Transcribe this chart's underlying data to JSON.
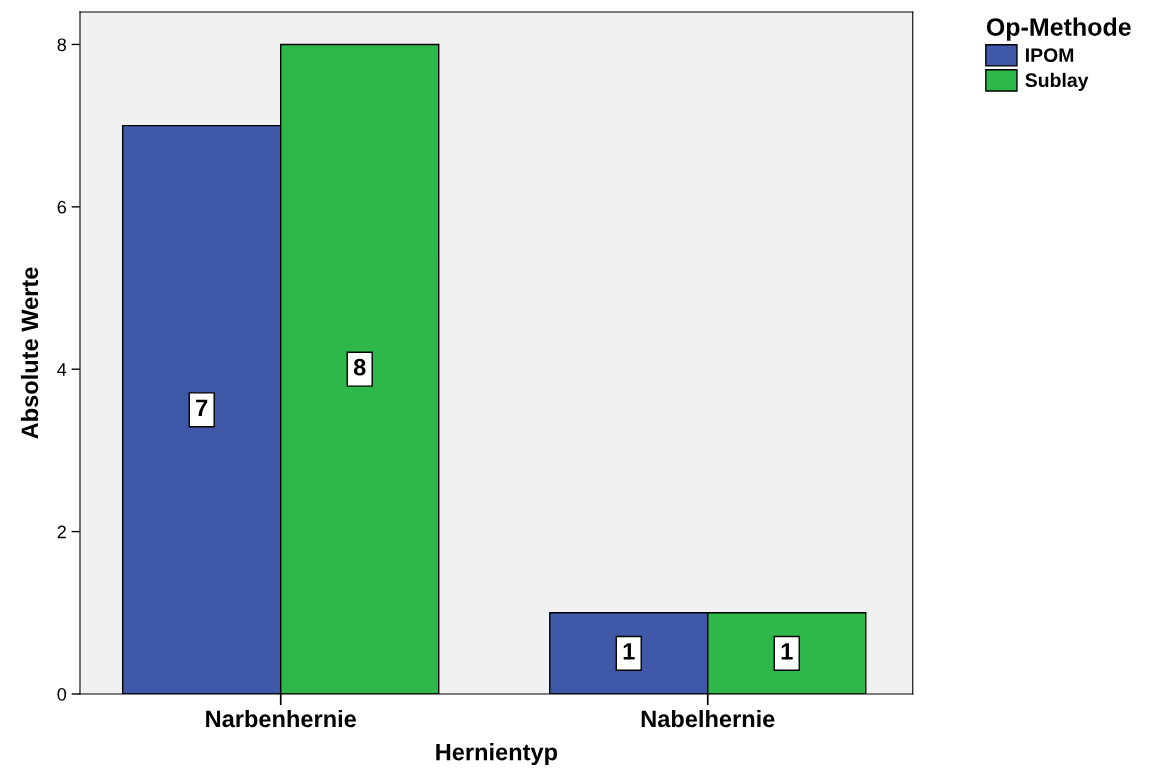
{
  "chart_data": {
    "type": "bar",
    "xlabel": "Hernientyp",
    "ylabel": "Absolute Werte",
    "legend_title": "Op-Methode",
    "categories": [
      "Narbenhernie",
      "Nabelhernie"
    ],
    "series": [
      {
        "name": "IPOM",
        "color": "#3f58a8",
        "values": [
          7,
          1
        ]
      },
      {
        "name": "Sublay",
        "color": "#2fb84a",
        "values": [
          8,
          1
        ]
      }
    ],
    "ylim": [
      0,
      8.4
    ],
    "yticks": [
      0,
      2,
      4,
      6,
      8
    ],
    "grid": false,
    "legend": "top right",
    "data_labels": true
  }
}
